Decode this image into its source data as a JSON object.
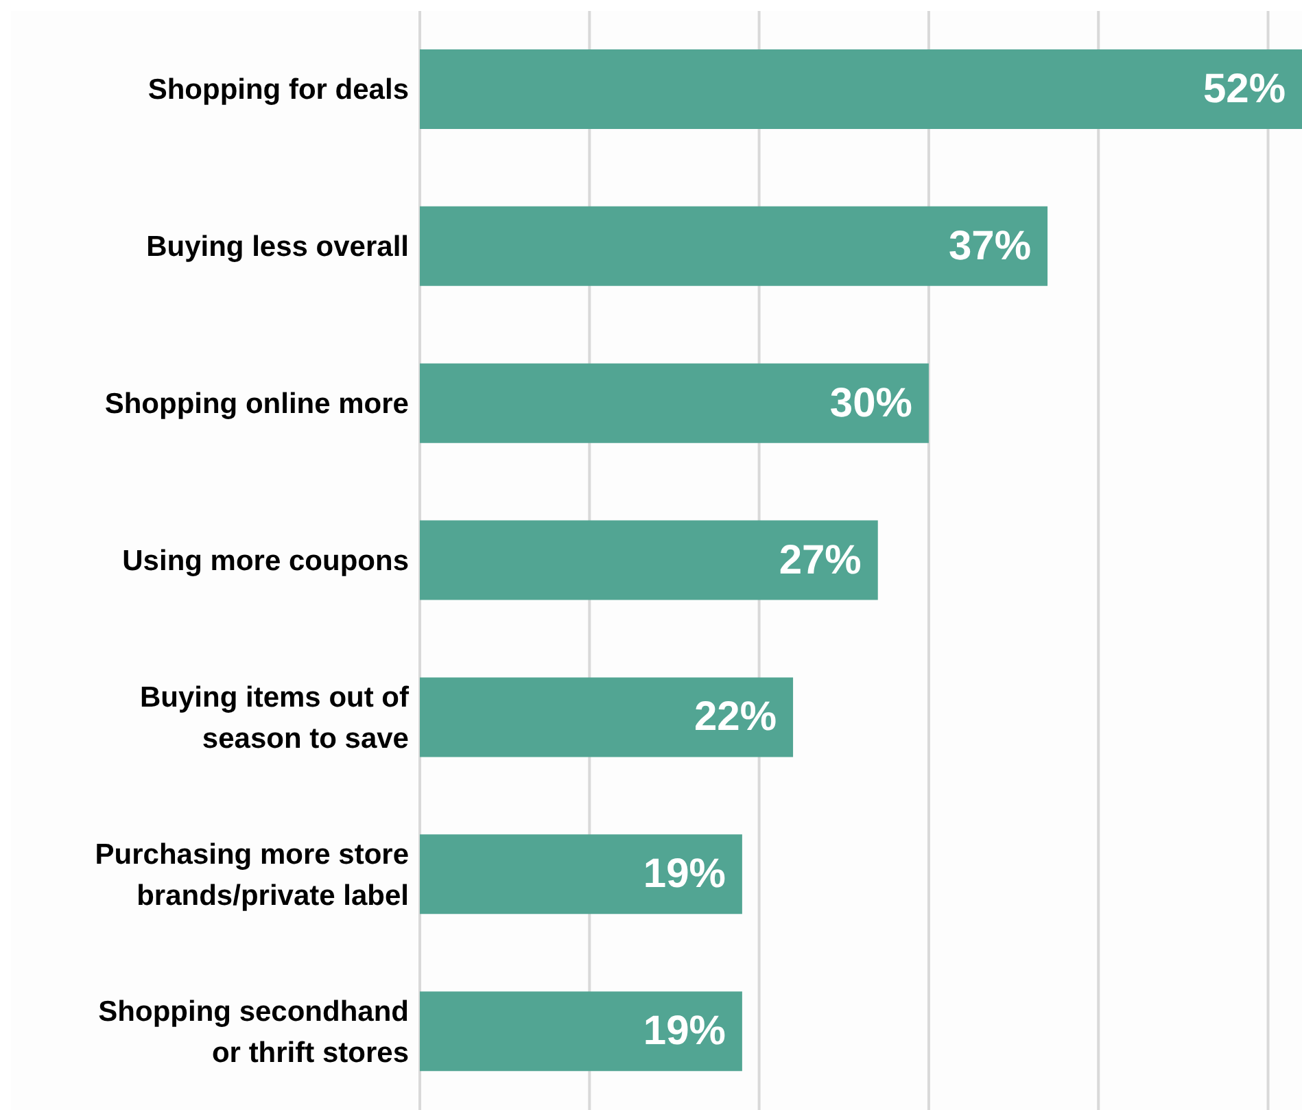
{
  "chart_data": {
    "type": "bar",
    "orientation": "horizontal",
    "categories": [
      "Shopping for deals",
      "Buying less overall",
      "Shopping online more",
      "Using more coupons",
      "Buying items out of season to save",
      "Purchasing more store brands/private label",
      "Shopping secondhand or thrift stores"
    ],
    "values": [
      52,
      37,
      30,
      27,
      22,
      19,
      19
    ],
    "value_labels": [
      "52%",
      "37%",
      "30%",
      "27%",
      "22%",
      "19%",
      "19%"
    ],
    "color": "#52a593",
    "xlim": [
      0,
      52
    ],
    "xticks": [
      {
        "value": 0,
        "label": null
      },
      {
        "value": 10,
        "label": null
      },
      {
        "value": 20,
        "label": null
      },
      {
        "value": 30,
        "label": null
      },
      {
        "value": 40,
        "label": null
      },
      {
        "value": 50,
        "label": null
      }
    ],
    "grid": "x",
    "tick_labels": "y",
    "legend": false
  }
}
